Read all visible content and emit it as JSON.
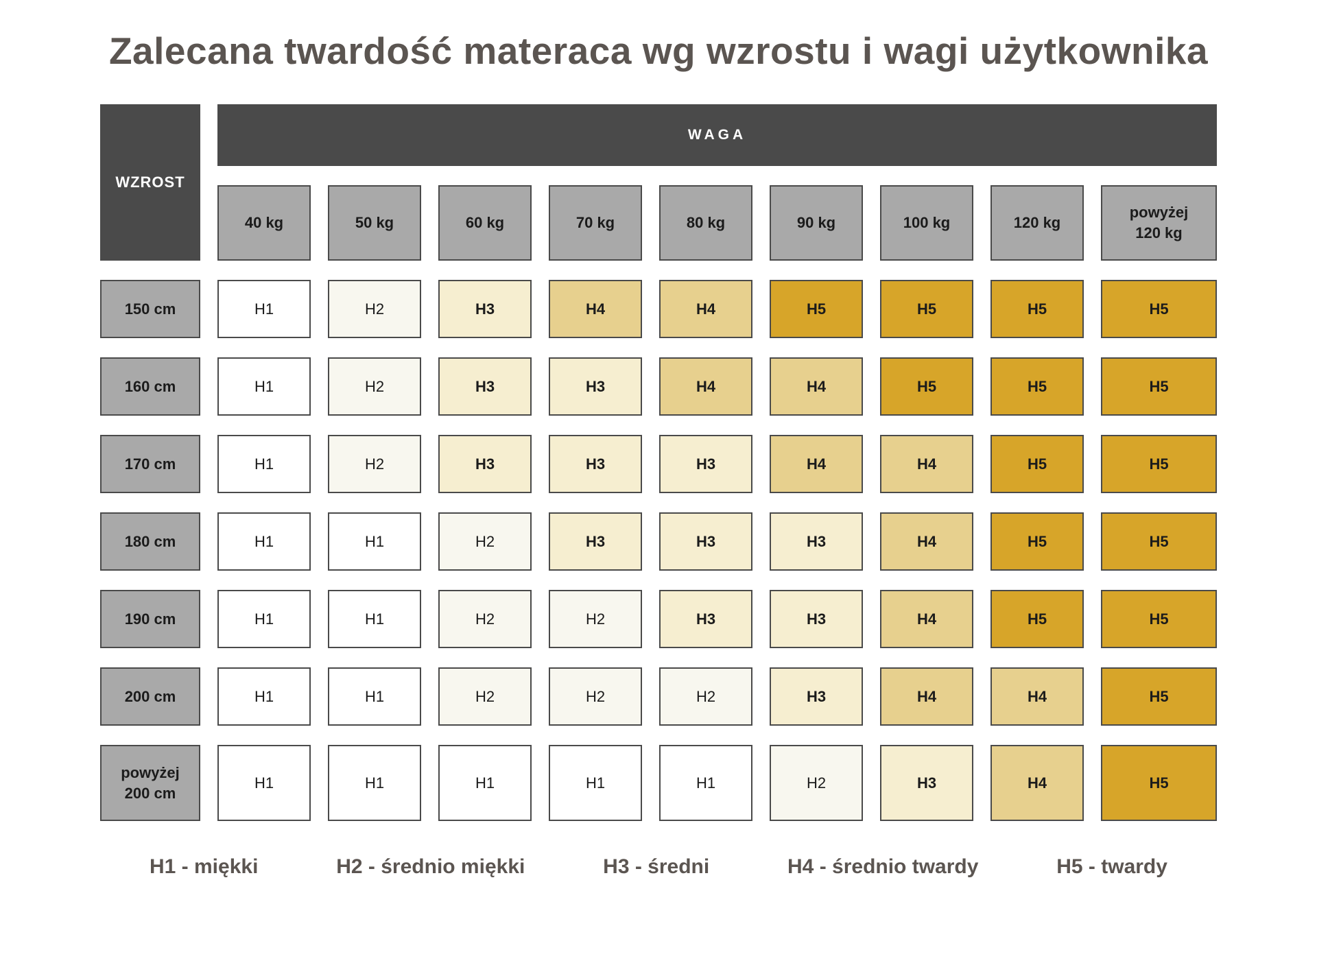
{
  "title": "Zalecana twardość materaca wg wzrostu i wagi użytkownika",
  "table": {
    "corner_label": "WZROST",
    "weight_header": "WAGA",
    "weights": [
      "40 kg",
      "50 kg",
      "60 kg",
      "70 kg",
      "80 kg",
      "90 kg",
      "100 kg",
      "120 kg",
      "powyżej\n120 kg"
    ],
    "rows": [
      {
        "height": "150 cm",
        "values": [
          "H1",
          "H2",
          "H3",
          "H4",
          "H4",
          "H5",
          "H5",
          "H5",
          "H5"
        ]
      },
      {
        "height": "160 cm",
        "values": [
          "H1",
          "H2",
          "H3",
          "H3",
          "H4",
          "H4",
          "H5",
          "H5",
          "H5"
        ]
      },
      {
        "height": "170 cm",
        "values": [
          "H1",
          "H2",
          "H3",
          "H3",
          "H3",
          "H4",
          "H4",
          "H5",
          "H5"
        ]
      },
      {
        "height": "180 cm",
        "values": [
          "H1",
          "H1",
          "H2",
          "H3",
          "H3",
          "H3",
          "H4",
          "H5",
          "H5"
        ]
      },
      {
        "height": "190 cm",
        "values": [
          "H1",
          "H1",
          "H2",
          "H2",
          "H3",
          "H3",
          "H4",
          "H5",
          "H5"
        ]
      },
      {
        "height": "200 cm",
        "values": [
          "H1",
          "H1",
          "H2",
          "H2",
          "H2",
          "H3",
          "H4",
          "H4",
          "H5"
        ]
      },
      {
        "height": "powyżej\n200 cm",
        "values": [
          "H1",
          "H1",
          "H1",
          "H1",
          "H1",
          "H2",
          "H3",
          "H4",
          "H5"
        ]
      }
    ]
  },
  "legend": [
    "H1 - miękki",
    "H2 - średnio miękki",
    "H3 - średni",
    "H4 - średnio twardy",
    "H5 - twardy"
  ],
  "colors": {
    "H1": "#ffffff",
    "H2": "#f8f7ef",
    "H3": "#f6eed0",
    "H4": "#e7d08e",
    "H5": "#d7a529",
    "header_dark": "#4a4a4a",
    "header_gray": "#a9a9a9",
    "cell_border": "#4a4a4a",
    "title_text": "#5b5551"
  },
  "bold_levels": [
    "H3",
    "H4",
    "H5"
  ],
  "chart_data": {
    "type": "heatmap",
    "title": "Zalecana twardość materaca wg wzrostu i wagi użytkownika",
    "xlabel": "WAGA",
    "ylabel": "WZROST",
    "x_categories": [
      "40 kg",
      "50 kg",
      "60 kg",
      "70 kg",
      "80 kg",
      "90 kg",
      "100 kg",
      "120 kg",
      "powyżej 120 kg"
    ],
    "y_categories": [
      "150 cm",
      "160 cm",
      "170 cm",
      "180 cm",
      "190 cm",
      "200 cm",
      "powyżej 200 cm"
    ],
    "values": [
      [
        "H1",
        "H2",
        "H3",
        "H4",
        "H4",
        "H5",
        "H5",
        "H5",
        "H5"
      ],
      [
        "H1",
        "H2",
        "H3",
        "H3",
        "H4",
        "H4",
        "H5",
        "H5",
        "H5"
      ],
      [
        "H1",
        "H2",
        "H3",
        "H3",
        "H3",
        "H4",
        "H4",
        "H5",
        "H5"
      ],
      [
        "H1",
        "H1",
        "H2",
        "H3",
        "H3",
        "H3",
        "H4",
        "H5",
        "H5"
      ],
      [
        "H1",
        "H1",
        "H2",
        "H2",
        "H3",
        "H3",
        "H4",
        "H5",
        "H5"
      ],
      [
        "H1",
        "H1",
        "H2",
        "H2",
        "H2",
        "H3",
        "H4",
        "H4",
        "H5"
      ],
      [
        "H1",
        "H1",
        "H1",
        "H1",
        "H1",
        "H2",
        "H3",
        "H4",
        "H5"
      ]
    ],
    "value_scale": {
      "H1": 1,
      "H2": 2,
      "H3": 3,
      "H4": 4,
      "H5": 5
    },
    "legend_entries": [
      "H1 - miękki",
      "H2 - średnio miękki",
      "H3 - średni",
      "H4 - średnio twardy",
      "H5 - twardy"
    ],
    "legend_position": "bottom",
    "grid": false
  }
}
